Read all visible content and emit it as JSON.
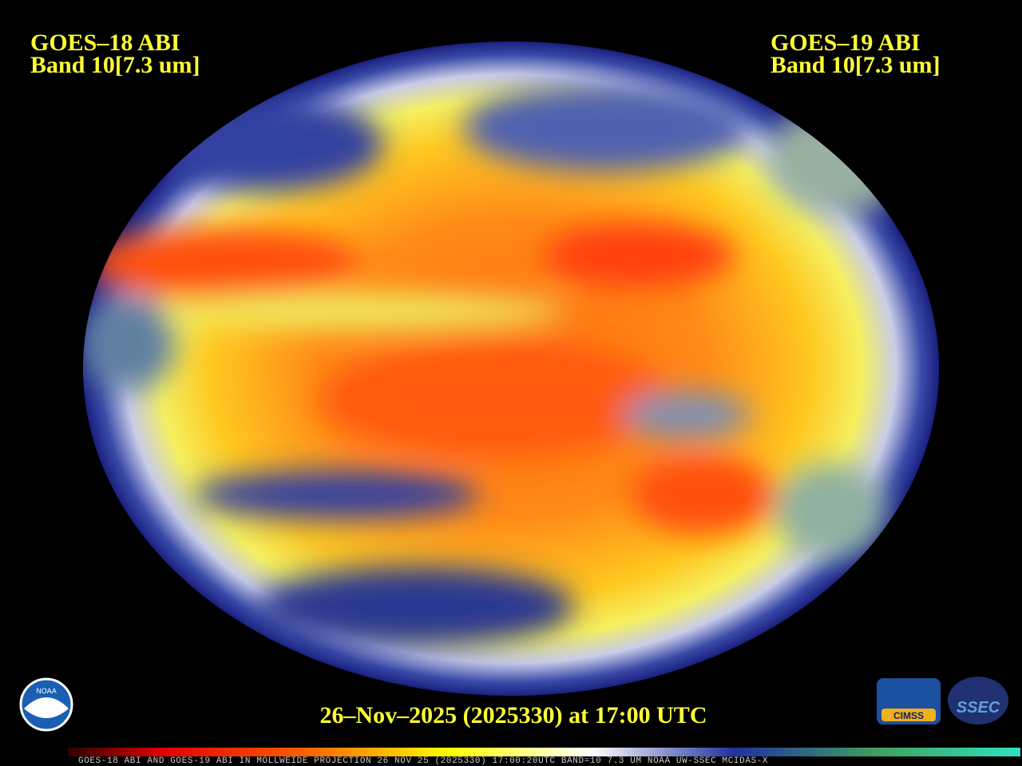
{
  "left_label": {
    "satellite": "GOES–18 ABI",
    "band": "Band 10[7.3 um]"
  },
  "right_label": {
    "satellite": "GOES–19 ABI",
    "band": "Band 10[7.3 um]"
  },
  "timestamp": "26–Nov–2025 (2025330) at 17:00 UTC",
  "footer": "GOES-18 ABI AND GOES-19 ABI IN MOLLWEIDE PROJECTION 26 NOV 25 (2025330) 17:00:20UTC BAND=10 7.3 UM NOAA UW-SSEC MCIDAS-X",
  "logos": {
    "noaa": "NOAA",
    "cimss": "CIMSS",
    "ssec": "SSEC"
  }
}
